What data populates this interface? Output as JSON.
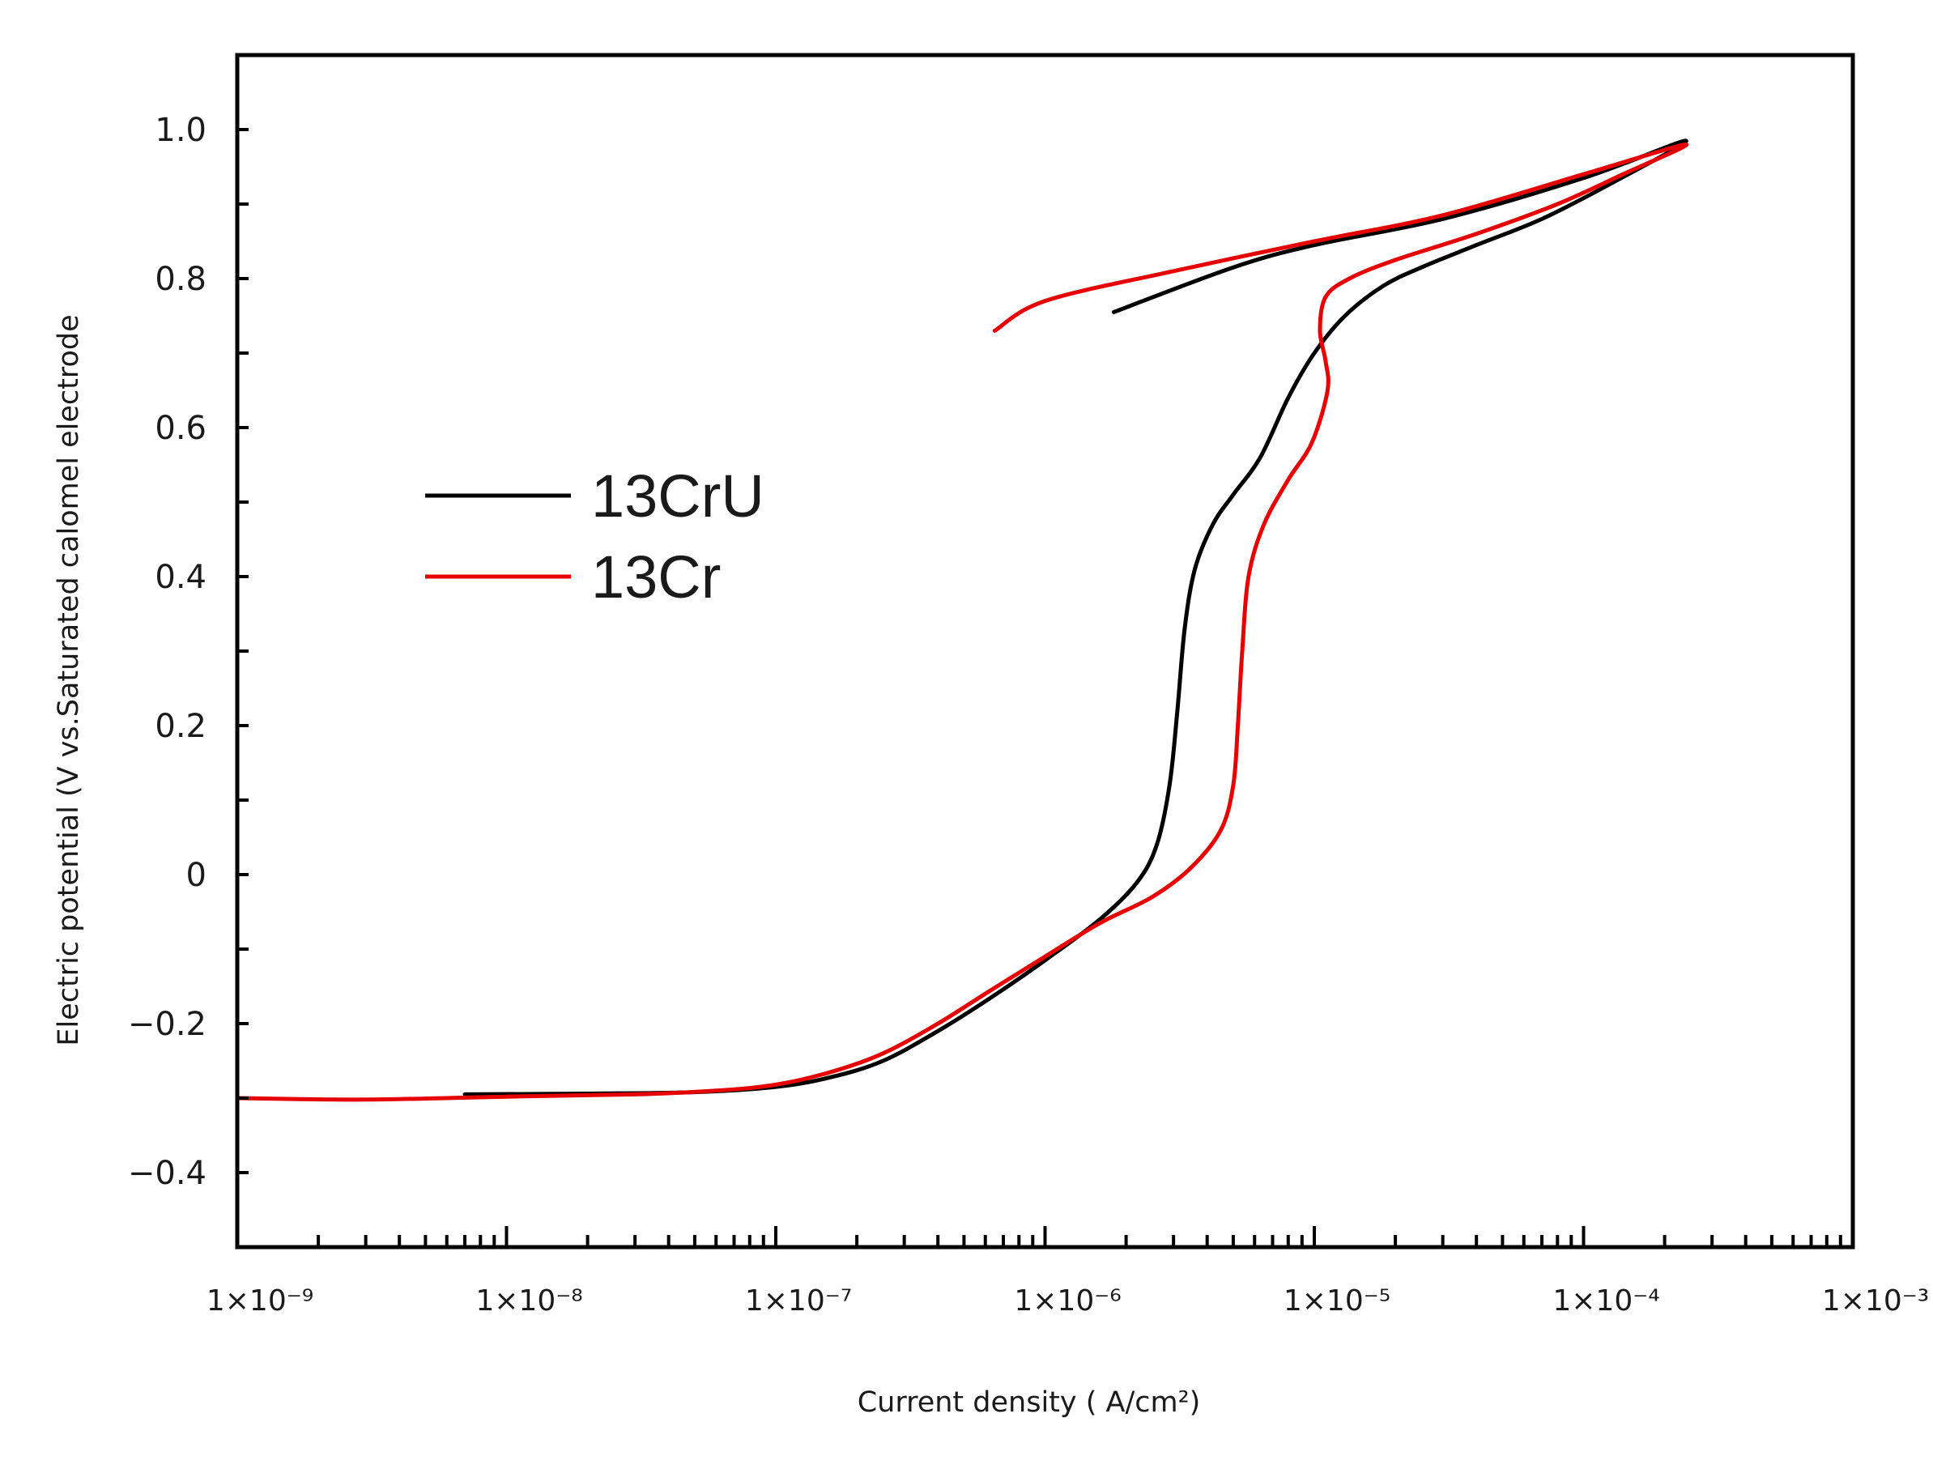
{
  "chart_data": {
    "type": "line",
    "title": "",
    "xlabel": "Current density ( A/cm²)",
    "ylabel": "Electric potential (V vs.Saturated calomel electrode",
    "xscale": "log",
    "xlim": [
      1e-09,
      0.001
    ],
    "ylim": [
      -0.5,
      1.1
    ],
    "xticks": [
      {
        "value": 1e-09,
        "label": "1×10⁻⁹"
      },
      {
        "value": 1e-08,
        "label": "1×10⁻⁸"
      },
      {
        "value": 1e-07,
        "label": "1×10⁻⁷"
      },
      {
        "value": 1e-06,
        "label": "1×10⁻⁶"
      },
      {
        "value": 1e-05,
        "label": "1×10⁻⁵"
      },
      {
        "value": 0.0001,
        "label": "1×10⁻⁴"
      },
      {
        "value": 0.001,
        "label": "1×10⁻³"
      }
    ],
    "yticks": [
      {
        "value": -0.4,
        "label": "−0.4"
      },
      {
        "value": -0.2,
        "label": "−0.2"
      },
      {
        "value": 0,
        "label": "0"
      },
      {
        "value": 0.2,
        "label": "0.2"
      },
      {
        "value": 0.4,
        "label": "0.4"
      },
      {
        "value": 0.6,
        "label": "0.6"
      },
      {
        "value": 0.8,
        "label": "0.8"
      },
      {
        "value": 1.0,
        "label": "1.0"
      }
    ],
    "legend_position": "upper-left",
    "grid": false,
    "series": [
      {
        "name": "13CrU",
        "color": "#000000",
        "points": [
          [
            7e-09,
            -0.295
          ],
          [
            2e-08,
            -0.294
          ],
          [
            5e-08,
            -0.292
          ],
          [
            1e-07,
            -0.285
          ],
          [
            1.6e-07,
            -0.272
          ],
          [
            2.5e-07,
            -0.25
          ],
          [
            4e-07,
            -0.21
          ],
          [
            6.3e-07,
            -0.165
          ],
          [
            1e-06,
            -0.115
          ],
          [
            1.6e-06,
            -0.06
          ],
          [
            2.2e-06,
            -0.01
          ],
          [
            2.6e-06,
            0.04
          ],
          [
            2.9e-06,
            0.12
          ],
          [
            3.1e-06,
            0.22
          ],
          [
            3.3e-06,
            0.33
          ],
          [
            3.6e-06,
            0.41
          ],
          [
            4.2e-06,
            0.47
          ],
          [
            5e-06,
            0.51
          ],
          [
            6.3e-06,
            0.56
          ],
          [
            8e-06,
            0.64
          ],
          [
            1e-05,
            0.7
          ],
          [
            1.3e-05,
            0.75
          ],
          [
            1.8e-05,
            0.79
          ],
          [
            2.5e-05,
            0.815
          ],
          [
            4e-05,
            0.845
          ],
          [
            7e-05,
            0.88
          ],
          [
            0.00013,
            0.93
          ],
          [
            0.00024,
            0.985
          ],
          [
            0.0001,
            0.935
          ],
          [
            3e-05,
            0.88
          ],
          [
            1e-05,
            0.845
          ],
          [
            5e-06,
            0.815
          ],
          [
            1.8e-06,
            0.755
          ]
        ]
      },
      {
        "name": "13Cr",
        "color": "#e60000",
        "points": [
          [
            1e-09,
            -0.3
          ],
          [
            3e-09,
            -0.302
          ],
          [
            1e-08,
            -0.298
          ],
          [
            3e-08,
            -0.295
          ],
          [
            6e-08,
            -0.29
          ],
          [
            1e-07,
            -0.282
          ],
          [
            1.6e-07,
            -0.265
          ],
          [
            2.5e-07,
            -0.24
          ],
          [
            4e-07,
            -0.2
          ],
          [
            6.3e-07,
            -0.155
          ],
          [
            1e-06,
            -0.11
          ],
          [
            1.6e-06,
            -0.065
          ],
          [
            2.5e-06,
            -0.03
          ],
          [
            3.5e-06,
            0.01
          ],
          [
            4.5e-06,
            0.06
          ],
          [
            5e-06,
            0.12
          ],
          [
            5.2e-06,
            0.2
          ],
          [
            5.4e-06,
            0.3
          ],
          [
            5.7e-06,
            0.4
          ],
          [
            6.5e-06,
            0.47
          ],
          [
            8e-06,
            0.53
          ],
          [
            9.8e-06,
            0.58
          ],
          [
            1.12e-05,
            0.65
          ],
          [
            1.1e-05,
            0.69
          ],
          [
            1.05e-05,
            0.73
          ],
          [
            1.1e-05,
            0.775
          ],
          [
            1.35e-05,
            0.8
          ],
          [
            2e-05,
            0.825
          ],
          [
            4e-05,
            0.86
          ],
          [
            8e-05,
            0.9
          ],
          [
            0.00014,
            0.94
          ],
          [
            0.00024,
            0.98
          ],
          [
            0.0001,
            0.94
          ],
          [
            3e-05,
            0.885
          ],
          [
            1e-05,
            0.85
          ],
          [
            3e-06,
            0.81
          ],
          [
            1e-06,
            0.77
          ],
          [
            6.5e-07,
            0.73
          ]
        ]
      }
    ]
  }
}
